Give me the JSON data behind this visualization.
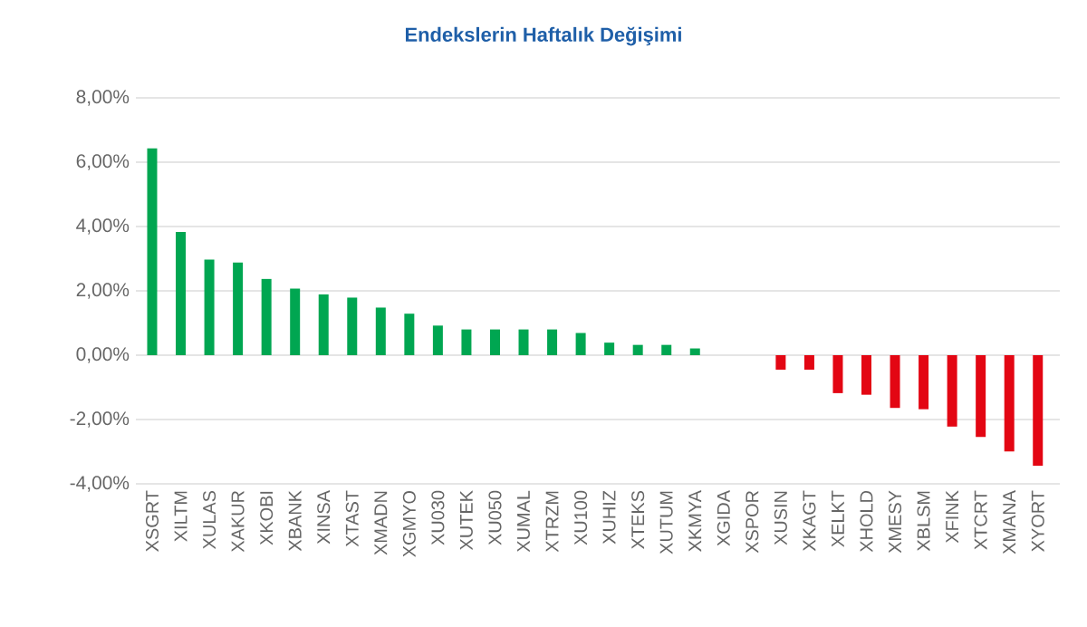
{
  "chart_data": {
    "type": "bar",
    "title": "Endekslerin Haftalık Değişimi",
    "categories": [
      "XSGRT",
      "XILTM",
      "XULAS",
      "XAKUR",
      "XKOBI",
      "XBANK",
      "XINSA",
      "XTAST",
      "XMADN",
      "XGMYO",
      "XU030",
      "XUTEK",
      "XU050",
      "XUMAL",
      "XTRZM",
      "XU100",
      "XUHIZ",
      "XTEKS",
      "XUTUM",
      "XKMYA",
      "XGIDA",
      "XSPOR",
      "XUSIN",
      "XKAGT",
      "XELKT",
      "XHOLD",
      "XMESY",
      "XBLSM",
      "XFINK",
      "XTCRT",
      "XMANA",
      "XYORT"
    ],
    "values": [
      6.43,
      3.83,
      2.97,
      2.88,
      2.37,
      2.07,
      1.89,
      1.79,
      1.48,
      1.29,
      0.92,
      0.8,
      0.8,
      0.8,
      0.8,
      0.69,
      0.39,
      0.32,
      0.32,
      0.21,
      0,
      0,
      -0.45,
      -0.45,
      -1.18,
      -1.23,
      -1.64,
      -1.68,
      -2.22,
      -2.54,
      -2.99,
      -3.44
    ],
    "colors": [
      "#00a651",
      "#00a651",
      "#00a651",
      "#00a651",
      "#00a651",
      "#00a651",
      "#00a651",
      "#00a651",
      "#00a651",
      "#00a651",
      "#00a651",
      "#00a651",
      "#00a651",
      "#00a651",
      "#00a651",
      "#00a651",
      "#00a651",
      "#00a651",
      "#00a651",
      "#00a651",
      "#00a651",
      "#00a651",
      "#e30613",
      "#e30613",
      "#e30613",
      "#e30613",
      "#e30613",
      "#e30613",
      "#e30613",
      "#e30613",
      "#e30613",
      "#e30613"
    ],
    "ylim": [
      -4,
      8
    ],
    "yticks": [
      {
        "value": -4,
        "label": "-4,00%"
      },
      {
        "value": -2,
        "label": "-2,00%"
      },
      {
        "value": 0,
        "label": "0,00%"
      },
      {
        "value": 2,
        "label": "2,00%"
      },
      {
        "value": 4,
        "label": "4,00%"
      },
      {
        "value": 6,
        "label": "6,00%"
      },
      {
        "value": 8,
        "label": "8,00%"
      }
    ],
    "grid": "y"
  }
}
